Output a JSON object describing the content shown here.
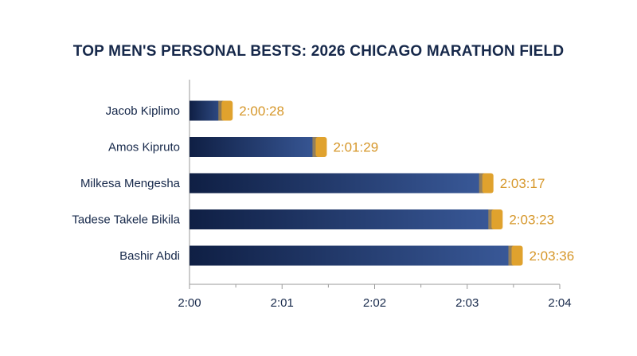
{
  "chart_data": {
    "type": "bar",
    "orientation": "horizontal",
    "title": "TOP MEN'S PERSONAL BESTS: 2026 CHICAGO MARATHON FIELD",
    "xlabel": "",
    "ylabel": "",
    "categories": [
      "Jacob Kiplimo",
      "Amos Kipruto",
      "Milkesa Mengesha",
      "Tadese Takele Bikila",
      "Bashir Abdi"
    ],
    "values": [
      "2:00:28",
      "2:01:29",
      "2:03:17",
      "2:03:23",
      "2:03:36"
    ],
    "value_labels": [
      "2:00:28",
      "2:01:29",
      "2:03:17",
      "2:03:23",
      "2:03:36"
    ],
    "xlim": [
      "2:00:00",
      "2:04:00"
    ],
    "xticks": [
      "2:00",
      "2:01",
      "2:02",
      "2:03",
      "2:04"
    ],
    "grid": false,
    "colors": {
      "bar_start": "#0f1f44",
      "bar_end": "#3a5a9a",
      "bar_tip": "#e0a22e",
      "value_label": "#d6972a",
      "text": "#16284a",
      "axis": "#9a9a9a"
    }
  }
}
